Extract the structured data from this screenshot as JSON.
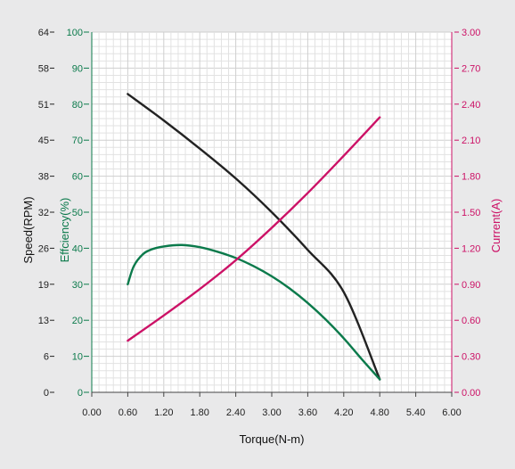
{
  "colors": {
    "background": "#e9e9ea",
    "plot_background": "#ffffff",
    "grid_minor": "#e2e2e2",
    "grid_major": "#cfcfcf",
    "speed": "#222222",
    "efficiency": "#0b7a4b",
    "current": "#cc1166"
  },
  "chart_data": {
    "type": "line",
    "xlabel": "Torque(N-m)",
    "xlim": [
      0,
      6
    ],
    "x_ticks": [
      "0.00",
      "0.60",
      "1.20",
      "1.80",
      "2.40",
      "3.00",
      "3.60",
      "4.20",
      "4.80",
      "5.40",
      "6.00"
    ],
    "axes": {
      "speed": {
        "label": "Speed(RPM)",
        "ylim": [
          0,
          64
        ],
        "ticks": [
          "0",
          "6",
          "13",
          "19",
          "26",
          "32",
          "38",
          "45",
          "51",
          "58",
          "64"
        ]
      },
      "efficiency": {
        "label": "Effciency(%)",
        "ylim": [
          0,
          100
        ],
        "ticks": [
          "0",
          "10",
          "20",
          "30",
          "40",
          "50",
          "60",
          "70",
          "80",
          "90",
          "100"
        ]
      },
      "current": {
        "label": "Current(A)",
        "ylim": [
          0,
          3
        ],
        "ticks": [
          "0.00",
          "0.30",
          "0.60",
          "0.90",
          "1.20",
          "1.50",
          "1.80",
          "2.10",
          "2.40",
          "2.70",
          "3.00"
        ]
      }
    },
    "grid": true,
    "series": [
      {
        "axis": "speed",
        "x": [
          0.6,
          1.2,
          1.8,
          2.4,
          3.0,
          3.6,
          4.2,
          4.8
        ],
        "y": [
          53.0,
          48.3,
          43.3,
          38.0,
          32.0,
          25.3,
          17.8,
          2.3
        ]
      },
      {
        "axis": "efficiency",
        "x": [
          0.6,
          0.7,
          0.85,
          1.0,
          1.2,
          1.5,
          1.8,
          2.1,
          2.4,
          2.7,
          3.0,
          3.3,
          3.6,
          3.9,
          4.2,
          4.5,
          4.8
        ],
        "y": [
          30.0,
          35.0,
          38.3,
          39.7,
          40.5,
          40.9,
          40.3,
          39.0,
          37.3,
          35.0,
          32.2,
          28.8,
          24.8,
          20.2,
          15.0,
          9.2,
          3.6
        ]
      },
      {
        "axis": "current",
        "x": [
          0.6,
          1.2,
          1.8,
          2.4,
          3.0,
          3.6,
          4.2,
          4.8
        ],
        "y": [
          0.43,
          0.64,
          0.86,
          1.1,
          1.37,
          1.66,
          1.97,
          2.29
        ]
      }
    ]
  }
}
